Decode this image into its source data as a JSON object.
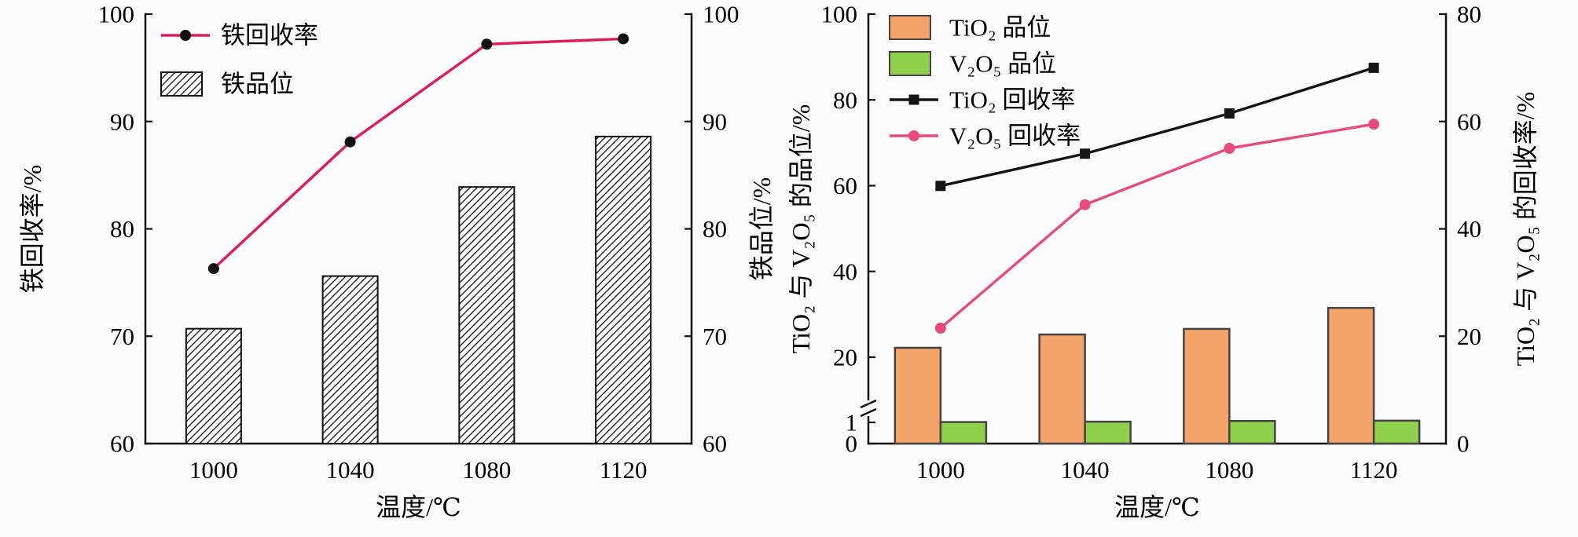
{
  "figure": {
    "background": "#fbfbfb",
    "description_labels": {
      "x_axis_title": "温度/℃"
    }
  },
  "chart_data": [
    {
      "id": "iron-chart",
      "type": "bar+line",
      "categories": [
        "1000",
        "1040",
        "1080",
        "1120"
      ],
      "xlabel": "温度/℃",
      "grid": false,
      "legend_position": "top-left",
      "left_axis": {
        "label": "铁回收率/%",
        "min": 60,
        "max": 100,
        "ticks": [
          60,
          70,
          80,
          90,
          100
        ]
      },
      "right_axis": {
        "label": "铁品位/%",
        "min": 60,
        "max": 100,
        "ticks": [
          60,
          70,
          80,
          90,
          100
        ]
      },
      "series": [
        {
          "name": "铁回收率",
          "type": "line",
          "axis": "left",
          "values": [
            76.3,
            88.1,
            97.2,
            97.7
          ],
          "color": "#e11a5c",
          "marker": "circle",
          "marker_color": "#111111"
        },
        {
          "name": "铁品位",
          "type": "bar",
          "axis": "right",
          "values": [
            70.7,
            75.6,
            83.9,
            88.6
          ],
          "fill": "hatch",
          "stroke": "#111111"
        }
      ]
    },
    {
      "id": "tio2-v2o5-chart",
      "type": "bar+line",
      "categories": [
        "1000",
        "1040",
        "1080",
        "1120"
      ],
      "xlabel": "温度/℃",
      "grid": false,
      "legend_position": "top-left",
      "left_axis": {
        "label": "TiO₂ 与 V₂O₅ 的品位/%",
        "min": 0,
        "max": 100,
        "ticks": [
          0,
          1,
          20,
          40,
          60,
          80,
          100
        ],
        "break": {
          "lower_max": 1,
          "upper_min": 20
        }
      },
      "right_axis": {
        "label": "TiO₂ 与 V₂O₅ 的回收率/%",
        "min": 0,
        "max": 80,
        "ticks": [
          0,
          20,
          40,
          60,
          80
        ]
      },
      "series": [
        {
          "name": "TiO₂ 品位",
          "type": "bar",
          "axis": "left",
          "values": [
            22.2,
            25.3,
            26.6,
            31.5
          ],
          "color": "#f4a469",
          "stroke": "#444444"
        },
        {
          "name": "V₂O₅ 品位",
          "type": "bar",
          "axis": "left",
          "values": [
            1.1,
            1.2,
            1.4,
            1.5
          ],
          "color": "#8fd04d",
          "stroke": "#444444"
        },
        {
          "name": "TiO₂ 回收率",
          "type": "line",
          "axis": "right",
          "values": [
            48,
            54,
            61.5,
            70
          ],
          "color": "#141414",
          "marker": "square"
        },
        {
          "name": "V₂O₅ 回收率",
          "type": "line",
          "axis": "right",
          "values": [
            21.5,
            44.5,
            55,
            59.5
          ],
          "color": "#e84a80",
          "marker": "circle"
        }
      ]
    }
  ]
}
